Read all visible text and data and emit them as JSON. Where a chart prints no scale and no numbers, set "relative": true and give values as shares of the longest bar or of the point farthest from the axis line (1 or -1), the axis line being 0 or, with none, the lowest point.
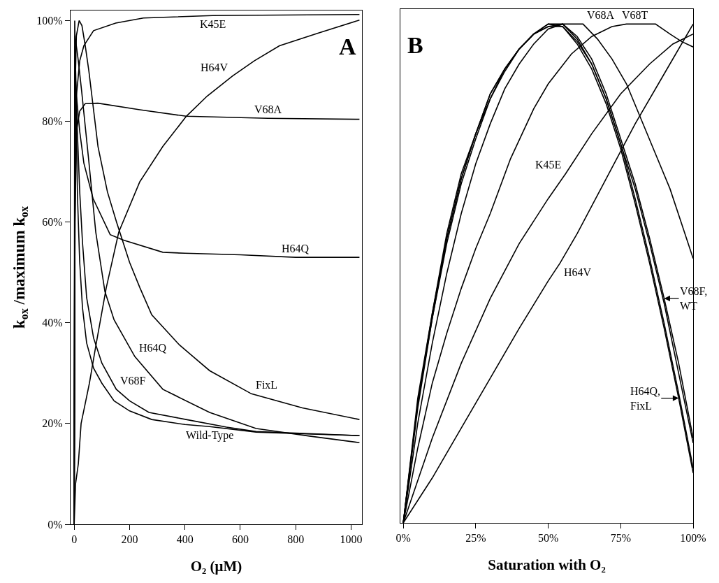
{
  "chart_data": [
    {
      "type": "line",
      "xlabel": "O₂ (μM)",
      "ylabel": "k$_{ox}$ /maximum k$_{ox}$",
      "xlim": [
        -13,
        1039
      ],
      "ylim": [
        0,
        102
      ],
      "xticks": [
        0,
        200,
        400,
        600,
        800,
        1000
      ],
      "yticks": [
        {
          "value": 0,
          "label": "0%"
        },
        {
          "value": 20,
          "label": "20%"
        },
        {
          "value": 40,
          "label": "40%"
        },
        {
          "value": 60,
          "label": "60%"
        },
        {
          "value": 80,
          "label": "80%"
        },
        {
          "value": 100,
          "label": "100%"
        }
      ],
      "grid": false,
      "series": [
        {
          "color": "#000000",
          "x": [
            0,
            3,
            8,
            20,
            35,
            70,
            150,
            250,
            500,
            1030
          ],
          "values": [
            0,
            60,
            85,
            92,
            95,
            98,
            99.5,
            100.5,
            101,
            101.2
          ]
        },
        {
          "color": "#000000",
          "x": [
            0,
            5,
            15,
            25,
            40,
            55,
            80,
            116,
            161,
            237,
            320,
            405,
            480,
            572,
            650,
            741,
            880,
            1030
          ],
          "values": [
            0,
            8,
            12,
            20,
            24,
            28,
            36,
            47,
            58,
            68,
            75,
            81,
            85,
            89,
            92,
            95,
            97.5,
            100.1
          ]
        },
        {
          "color": "#000000",
          "x": [
            0,
            3,
            8,
            20,
            40,
            86,
            237,
            405,
            700,
            1030
          ],
          "values": [
            0,
            60,
            78,
            82,
            83.5,
            83.6,
            82.3,
            81,
            80.6,
            80.4
          ]
        },
        {
          "color": "#000000",
          "x": [
            0,
            3,
            10,
            20,
            35,
            68,
            130,
            178,
            320,
            400,
            600,
            800,
            1030
          ],
          "values": [
            0,
            90,
            84,
            78,
            71.7,
            64.7,
            57.5,
            56.4,
            54,
            53.8,
            53.5,
            53,
            53
          ]
        },
        {
          "color": "#000000",
          "x": [
            0,
            3,
            15,
            27,
            40,
            53,
            78,
            111,
            144,
            219,
            320,
            489,
            657,
            850,
            1030
          ],
          "values": [
            0,
            97,
            92,
            86,
            79,
            72,
            58,
            46.2,
            40.6,
            33.3,
            26.8,
            22.2,
            19,
            17.5,
            16.2
          ]
        },
        {
          "color": "#000000",
          "x": [
            0,
            3,
            8,
            18,
            28,
            40,
            53,
            86,
            120,
            153,
            200,
            237,
            280,
            380,
            489,
            640,
            824,
            1030
          ],
          "values": [
            0,
            85,
            97,
            100,
            99,
            95,
            90,
            75,
            66,
            60,
            52,
            47,
            41.6,
            35.6,
            30.5,
            25.9,
            23.1,
            20.8
          ]
        },
        {
          "color": "#000000",
          "x": [
            0,
            3,
            10,
            20,
            30,
            45,
            70,
            100,
            152,
            200,
            270,
            404,
            550,
            657,
            1030
          ],
          "values": [
            0,
            95,
            80,
            66,
            56,
            45,
            37,
            32,
            26.8,
            24.5,
            22.2,
            20.8,
            19.3,
            18.4,
            17.6
          ]
        },
        {
          "color": "#000000",
          "x": [
            0,
            2,
            6,
            12,
            20,
            30,
            45,
            70,
            100,
            144,
            200,
            280,
            400,
            489,
            657,
            800,
            1030
          ],
          "values": [
            0,
            100,
            85,
            65,
            52,
            43,
            36,
            31,
            28,
            24.5,
            22.5,
            20.8,
            19.8,
            19.4,
            18.3,
            18,
            17.6
          ]
        }
      ],
      "annotations": [
        "A",
        {
          "text": "K45E",
          "x": 500,
          "y": 101
        },
        {
          "text": "H64V",
          "x": 572,
          "y": 89
        },
        {
          "text": "V68A",
          "x": 700,
          "y": 80.6
        },
        {
          "text": "H64Q",
          "x": 800,
          "y": 53
        },
        {
          "text": "H64Q",
          "x": 219,
          "y": 33.3
        },
        {
          "text": "FixL",
          "x": 640,
          "y": 25.9
        },
        {
          "text": "V68F",
          "x": 152,
          "y": 26.8
        },
        {
          "text": "Wild-Type",
          "x": 489,
          "y": 19.4
        }
      ]
    },
    {
      "type": "line",
      "relative": true,
      "xlabel": "Saturation with O₂",
      "xlim": [
        -1,
        100
      ],
      "xticks": [
        {
          "value": 0,
          "label": "0%"
        },
        {
          "value": 25,
          "label": "25%"
        },
        {
          "value": 50,
          "label": "50%"
        },
        {
          "value": 75,
          "label": "75%"
        },
        {
          "value": 100,
          "label": "100%"
        }
      ],
      "tick_labels": "x",
      "grid": false,
      "x": [
        0,
        5,
        10,
        15,
        20,
        25,
        30,
        35,
        40,
        45,
        50,
        55,
        60,
        65,
        70,
        75,
        80,
        85,
        90,
        95,
        100
      ],
      "series": [
        {
          "color": "#000000",
          "values": [
            0,
            0.25,
            0.42,
            0.58,
            0.7,
            0.78,
            0.86,
            0.91,
            0.95,
            0.98,
            1,
            1,
            0.97,
            0.92,
            0.85,
            0.76,
            0.67,
            0.56,
            0.44,
            0.3,
            0.16
          ]
        },
        {
          "color": "#000000",
          "values": [
            0,
            0.24,
            0.41,
            0.57,
            0.69,
            0.78,
            0.85,
            0.91,
            0.95,
            0.98,
            0.995,
            1,
            0.975,
            0.93,
            0.86,
            0.77,
            0.68,
            0.57,
            0.45,
            0.32,
            0.17
          ]
        },
        {
          "color": "#000000",
          "values": [
            0,
            0.24,
            0.42,
            0.57,
            0.69,
            0.78,
            0.86,
            0.91,
            0.95,
            0.98,
            1,
            0.995,
            0.96,
            0.91,
            0.84,
            0.75,
            0.64,
            0.52,
            0.39,
            0.25,
            0.1
          ]
        },
        {
          "color": "#000000",
          "values": [
            0,
            0.23,
            0.41,
            0.56,
            0.68,
            0.77,
            0.85,
            0.905,
            0.95,
            0.98,
            0.995,
            0.995,
            0.965,
            0.92,
            0.85,
            0.76,
            0.65,
            0.53,
            0.4,
            0.26,
            0.11
          ]
        },
        {
          "color": "#000000",
          "x": [
            0,
            5,
            10,
            15,
            20,
            25,
            30,
            35,
            40,
            45,
            50,
            55,
            62,
            67,
            72,
            77,
            82,
            87,
            92,
            96,
            100
          ],
          "values": [
            0,
            0.2,
            0.36,
            0.5,
            0.62,
            0.72,
            0.8,
            0.87,
            0.92,
            0.96,
            0.99,
            1,
            1,
            0.97,
            0.93,
            0.88,
            0.81,
            0.74,
            0.67,
            0.6,
            0.53
          ]
        },
        {
          "color": "#000000",
          "x": [
            0,
            5,
            10,
            15,
            20,
            25,
            30,
            37,
            45,
            50,
            58,
            65,
            72,
            77,
            80,
            87,
            92,
            96,
            100
          ],
          "values": [
            0,
            0.15,
            0.28,
            0.38,
            0.47,
            0.55,
            0.62,
            0.73,
            0.83,
            0.88,
            0.94,
            0.975,
            0.995,
            1,
            1,
            1,
            0.98,
            0.965,
            0.954
          ]
        },
        {
          "color": "#000000",
          "x": [
            0,
            10,
            20,
            30,
            40,
            50,
            56,
            65,
            75,
            85,
            93,
            100
          ],
          "values": [
            0,
            0.17,
            0.32,
            0.45,
            0.56,
            0.65,
            0.7,
            0.78,
            0.86,
            0.92,
            0.96,
            0.98
          ]
        },
        {
          "color": "#000000",
          "x": [
            0,
            10,
            20,
            30,
            40,
            50,
            54,
            60,
            70,
            80,
            90,
            100
          ],
          "values": [
            0,
            0.09,
            0.19,
            0.29,
            0.39,
            0.485,
            0.52,
            0.58,
            0.69,
            0.8,
            0.9,
            1
          ]
        }
      ],
      "annotations": [
        "B",
        {
          "text": "V68A",
          "x": 62,
          "y": 1
        },
        {
          "text": "V68T",
          "x": 80,
          "y": 1
        },
        {
          "text": "K45E",
          "x": 56,
          "y": 0.7
        },
        {
          "text": "H64V",
          "x": 54,
          "y": 0.52
        },
        {
          "text": "V68F,\nWT",
          "x": 90,
          "y": 0.45
        },
        {
          "text": "H64Q,\nFixL",
          "x": 95,
          "y": 0.25
        }
      ]
    }
  ]
}
